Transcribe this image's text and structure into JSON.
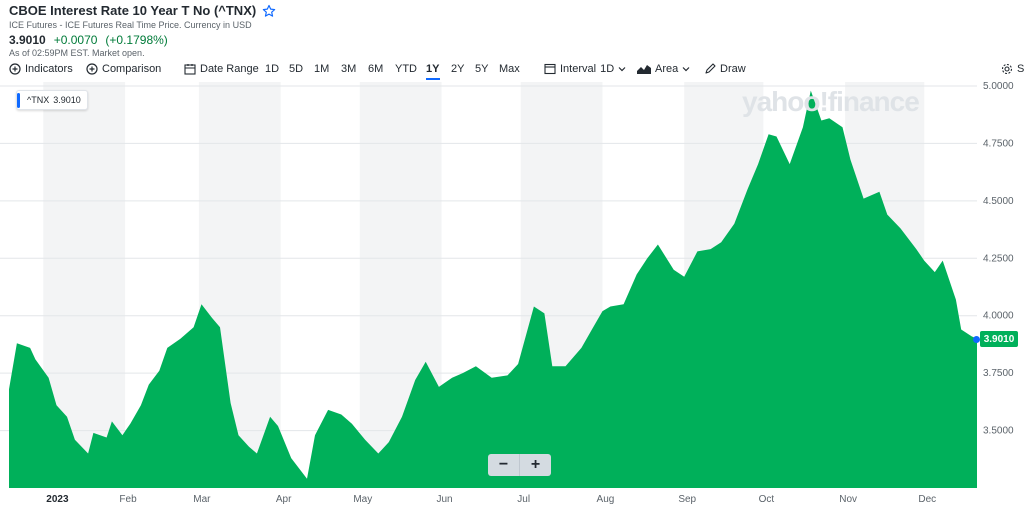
{
  "header": {
    "title": "CBOE Interest Rate 10 Year T No (^TNX)",
    "subtitle": "ICE Futures - ICE Futures Real Time Price. Currency in USD",
    "price": "3.9010",
    "change": "+0.0070",
    "change_pct": "(+0.1798%)",
    "as_of": "As of 02:59PM EST. Market open."
  },
  "toolbar": {
    "indicators": "Indicators",
    "comparison": "Comparison",
    "date_range": "Date Range",
    "ranges": [
      "1D",
      "5D",
      "1M",
      "3M",
      "6M",
      "YTD",
      "1Y",
      "2Y",
      "5Y",
      "Max"
    ],
    "active_range": "1Y",
    "interval_label": "Interval",
    "interval_value": "1D",
    "chart_type": "Area",
    "draw": "Draw",
    "settings": "Se"
  },
  "tooltip": {
    "symbol": "^TNX",
    "value": "3.9010"
  },
  "watermark": "yahoo!finance",
  "zoom": {
    "minus": "−",
    "plus": "+"
  },
  "colors": {
    "area": "#00b05a",
    "accent": "#0f69ff",
    "positive": "#007b39"
  },
  "chart_data": {
    "type": "area",
    "title": "",
    "xlabel": "",
    "ylabel": "",
    "ylim": [
      3.25,
      5.0
    ],
    "y_ticks": [
      "5.0000",
      "4.7500",
      "4.5000",
      "4.2500",
      "4.0000",
      "3.7500",
      "3.5000"
    ],
    "x_ticks": [
      "2023",
      "Feb",
      "Mar",
      "Apr",
      "May",
      "Jun",
      "Jul",
      "Aug",
      "Sep",
      "Oct",
      "Nov",
      "Dec"
    ],
    "last_value": "3.9010",
    "x": [
      "2022-12-19",
      "2022-12-22",
      "2022-12-27",
      "2022-12-29",
      "2023-01-03",
      "2023-01-06",
      "2023-01-10",
      "2023-01-13",
      "2023-01-18",
      "2023-01-20",
      "2023-01-25",
      "2023-01-27",
      "2023-01-31",
      "2023-02-03",
      "2023-02-07",
      "2023-02-10",
      "2023-02-14",
      "2023-02-17",
      "2023-02-22",
      "2023-02-27",
      "2023-03-02",
      "2023-03-06",
      "2023-03-09",
      "2023-03-13",
      "2023-03-16",
      "2023-03-20",
      "2023-03-23",
      "2023-03-28",
      "2023-03-31",
      "2023-04-05",
      "2023-04-11",
      "2023-04-14",
      "2023-04-19",
      "2023-04-24",
      "2023-04-28",
      "2023-05-03",
      "2023-05-08",
      "2023-05-12",
      "2023-05-17",
      "2023-05-22",
      "2023-05-26",
      "2023-05-31",
      "2023-06-05",
      "2023-06-09",
      "2023-06-14",
      "2023-06-20",
      "2023-06-26",
      "2023-06-30",
      "2023-07-06",
      "2023-07-10",
      "2023-07-13",
      "2023-07-18",
      "2023-07-24",
      "2023-07-28",
      "2023-08-01",
      "2023-08-04",
      "2023-08-09",
      "2023-08-14",
      "2023-08-18",
      "2023-08-22",
      "2023-08-28",
      "2023-09-01",
      "2023-09-06",
      "2023-09-11",
      "2023-09-15",
      "2023-09-20",
      "2023-09-25",
      "2023-09-29",
      "2023-10-03",
      "2023-10-06",
      "2023-10-11",
      "2023-10-16",
      "2023-10-19",
      "2023-10-23",
      "2023-10-26",
      "2023-10-31",
      "2023-11-03",
      "2023-11-08",
      "2023-11-14",
      "2023-11-17",
      "2023-11-22",
      "2023-11-28",
      "2023-12-01",
      "2023-12-05",
      "2023-12-08",
      "2023-12-13",
      "2023-12-15",
      "2023-12-19",
      "2023-12-21"
    ],
    "values": [
      3.68,
      3.88,
      3.86,
      3.81,
      3.73,
      3.61,
      3.56,
      3.46,
      3.4,
      3.49,
      3.47,
      3.54,
      3.48,
      3.53,
      3.61,
      3.7,
      3.76,
      3.86,
      3.9,
      3.95,
      4.05,
      3.99,
      3.95,
      3.62,
      3.48,
      3.43,
      3.4,
      3.56,
      3.52,
      3.38,
      3.29,
      3.48,
      3.59,
      3.57,
      3.53,
      3.46,
      3.4,
      3.45,
      3.56,
      3.72,
      3.8,
      3.69,
      3.73,
      3.75,
      3.78,
      3.73,
      3.74,
      3.79,
      4.04,
      4.01,
      3.78,
      3.78,
      3.86,
      3.94,
      4.02,
      4.04,
      4.05,
      4.18,
      4.25,
      4.31,
      4.2,
      4.17,
      4.28,
      4.29,
      4.32,
      4.4,
      4.55,
      4.66,
      4.79,
      4.78,
      4.66,
      4.82,
      4.98,
      4.85,
      4.86,
      4.82,
      4.68,
      4.51,
      4.54,
      4.44,
      4.38,
      4.29,
      4.24,
      4.19,
      4.24,
      4.07,
      3.94,
      3.91,
      3.9
    ]
  }
}
